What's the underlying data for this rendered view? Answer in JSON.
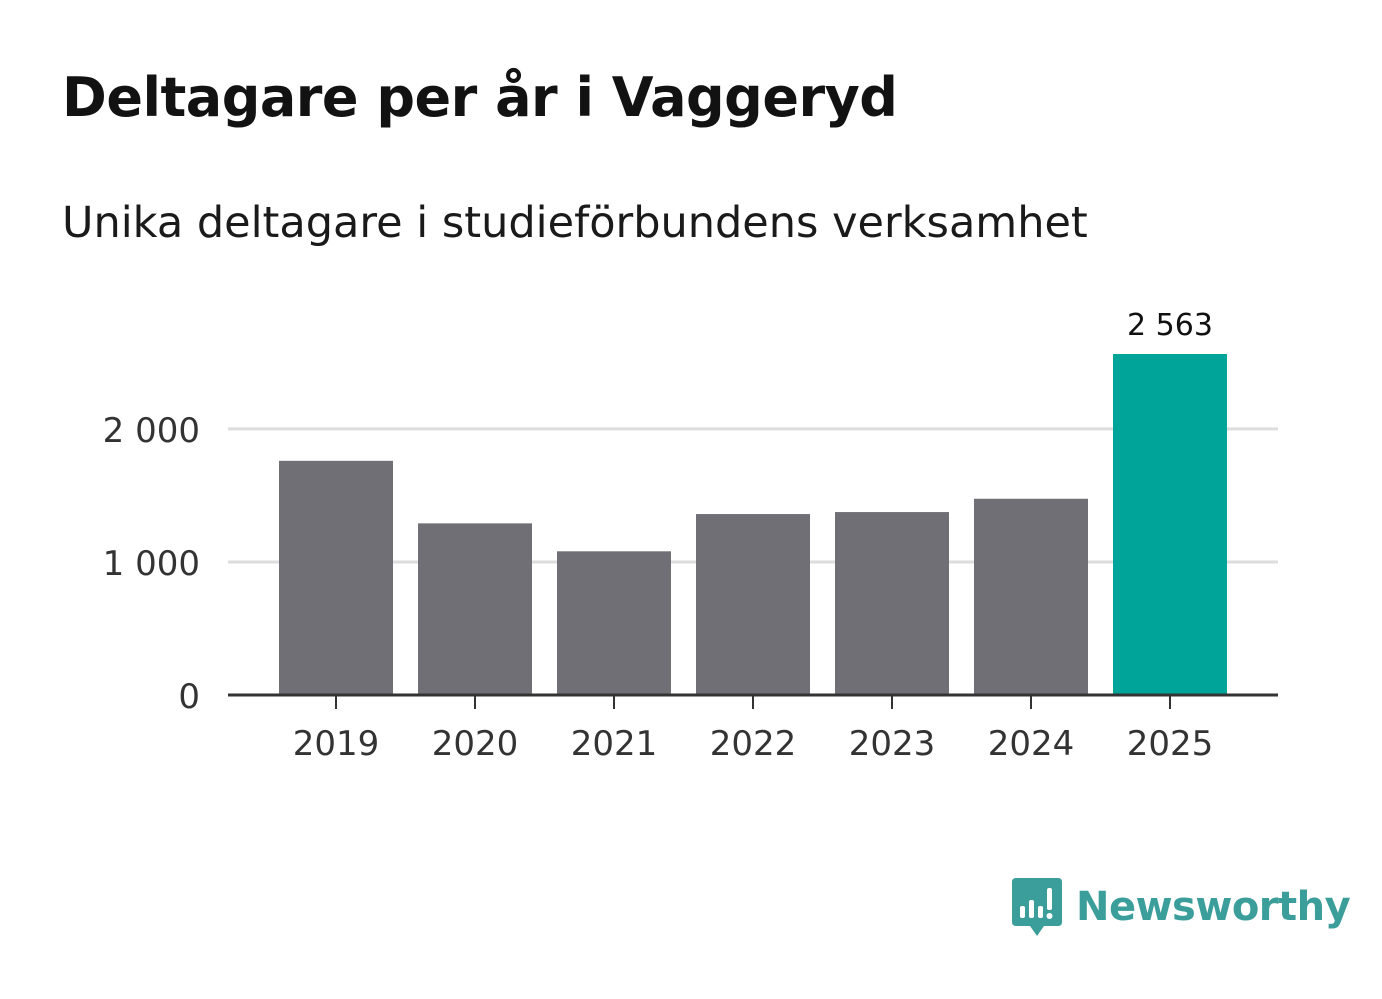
{
  "chart_data": {
    "type": "bar",
    "title": "Deltagare per år i Vaggeryd",
    "subtitle": "Unika deltagare i studieförbundens verksamhet",
    "categories": [
      "2019",
      "2020",
      "2021",
      "2022",
      "2023",
      "2024",
      "2025"
    ],
    "values": [
      1760,
      1290,
      1080,
      1360,
      1375,
      1475,
      2563
    ],
    "value_labels": [
      "",
      "",
      "",
      "",
      "",
      "",
      "2 563"
    ],
    "yticks": [
      {
        "value": 0,
        "label": "0"
      },
      {
        "value": 1000,
        "label": "1 000"
      },
      {
        "value": 2000,
        "label": "2 000"
      }
    ],
    "ylim": [
      0,
      2563
    ],
    "xlabel": "",
    "ylabel": "",
    "grid": true,
    "colors": {
      "bar": "#706f75",
      "highlight": "#00a499",
      "grid": "#dddddd",
      "axis": "#333333",
      "tick_label": "#333333"
    },
    "highlight_index": 6
  },
  "brand": {
    "name": "Newsworthy",
    "color": "#3c9e9a",
    "icon": "newsworthy-logo-icon"
  }
}
